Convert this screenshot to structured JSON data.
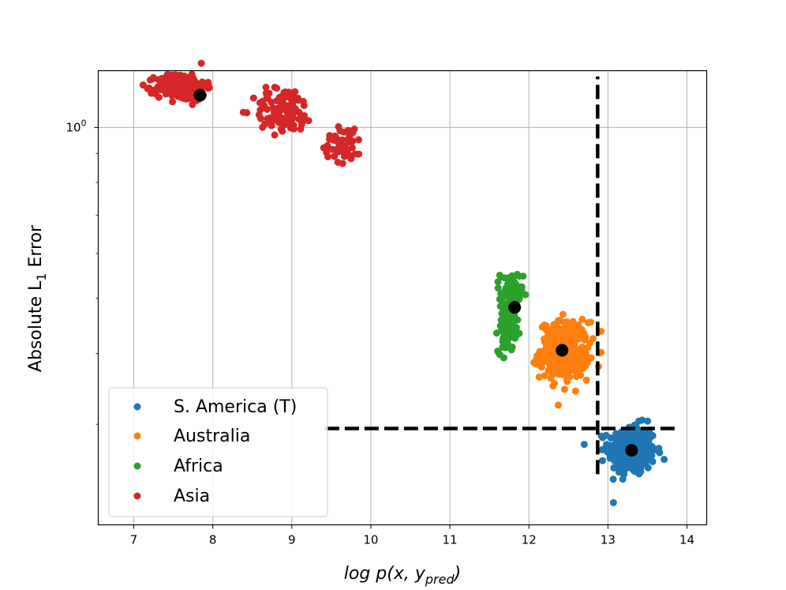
{
  "chart_data": {
    "type": "scatter",
    "title": "",
    "xlabel_parts": {
      "prefix": "log p(x, y",
      "subscript": "pred",
      "suffix": ")"
    },
    "ylabel_parts": {
      "prefix": "Absolute L",
      "subscript": "1",
      "suffix": " Error"
    },
    "xlim": [
      6.55,
      14.25
    ],
    "ylim_log10": [
      -0.7,
      0.1
    ],
    "x_ticks": [
      7,
      8,
      9,
      10,
      11,
      12,
      13,
      14
    ],
    "x_tick_labels": [
      "7",
      "8",
      "9",
      "10",
      "11",
      "12",
      "13",
      "14"
    ],
    "y_major_tick": 1.0,
    "y_major_tick_base": "10",
    "y_major_tick_exp": "0",
    "y_minor_ticks": [
      0.3,
      0.4,
      0.5,
      0.6,
      0.7,
      0.8,
      0.9
    ],
    "grid": true,
    "legend_position": "lower-left",
    "colors": {
      "S. America (T)": "#1f77b4",
      "Australia": "#ff7f0e",
      "Africa": "#2ca02c",
      "Asia": "#d62728",
      "centroid": "#000000",
      "threshold": "#000000"
    },
    "series": [
      {
        "name": "S. America (T)",
        "clusters": [
          {
            "center": [
              13.3,
              0.27
            ],
            "spread_x": 0.27,
            "spread_y_log10": 0.022,
            "count": 320
          }
        ],
        "centroid": [
          13.3,
          0.27
        ]
      },
      {
        "name": "Australia",
        "clusters": [
          {
            "center": [
              12.45,
              0.405
            ],
            "spread_x": 0.28,
            "spread_y_log10": 0.025,
            "count": 320
          }
        ],
        "centroid": [
          12.42,
          0.405
        ]
      },
      {
        "name": "Africa",
        "clusters": [
          {
            "center": [
              11.78,
              0.505
            ],
            "spread_x": 0.13,
            "spread_y_log10": 0.022,
            "count": 80
          },
          {
            "center": [
              11.72,
              0.445
            ],
            "spread_x": 0.1,
            "spread_y_log10": 0.022,
            "count": 90
          }
        ],
        "centroid": [
          11.82,
          0.482
        ]
      },
      {
        "name": "Asia",
        "clusters": [
          {
            "center": [
              7.6,
              1.18
            ],
            "spread_x": 0.28,
            "spread_y_log10": 0.012,
            "count": 200
          },
          {
            "center": [
              8.9,
              1.07
            ],
            "spread_x": 0.35,
            "spread_y_log10": 0.02,
            "count": 110
          },
          {
            "center": [
              9.65,
              0.94
            ],
            "spread_x": 0.22,
            "spread_y_log10": 0.018,
            "count": 45
          }
        ],
        "centroid": [
          7.84,
          1.14
        ]
      }
    ],
    "threshold_lines": [
      {
        "orientation": "vertical",
        "x": 12.87,
        "y_range": [
          0.245,
          1.23
        ]
      },
      {
        "orientation": "horizontal",
        "y": 0.295,
        "x_range": [
          9.42,
          13.88
        ]
      }
    ]
  }
}
